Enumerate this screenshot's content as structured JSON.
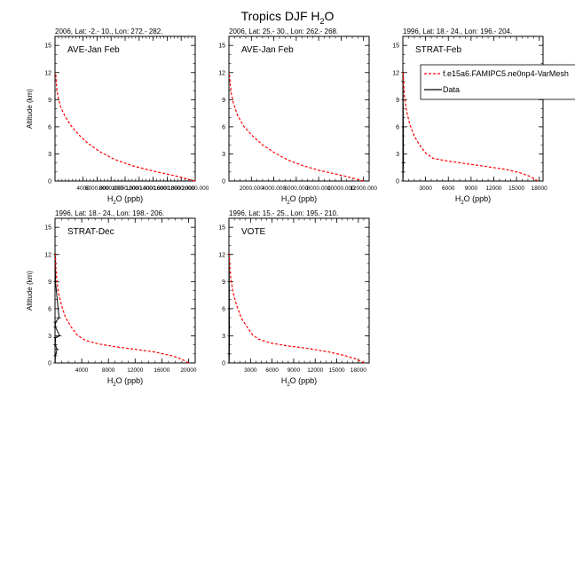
{
  "figure": {
    "title_main": "Tropics DJF H",
    "title_sub": "2",
    "title_tail": "O"
  },
  "legend": {
    "model_label": "f.e15a6.FAMIPC5.ne0np4-VarMesh",
    "data_label": "Data"
  },
  "colors": {
    "model": "#ff0000",
    "data": "#000000",
    "axis": "#000000"
  },
  "chart_data": [
    {
      "type": "line",
      "header": "2006, Lat: -2.- 10., Lon: 272.- 282.",
      "campaign": "AVE-Jan Feb",
      "xlabel": "H2O (ppb)",
      "ylabel": "Altitude (km)",
      "xlim": [
        0,
        20000
      ],
      "ylim": [
        0,
        16
      ],
      "xticks": [
        4000,
        6000,
        8000,
        10000,
        12000,
        14000,
        16000,
        18000,
        20000
      ],
      "xtick_labels": [
        "4000",
        "6000.000",
        "8000.000",
        "10000.000",
        "12000.000",
        "14000.000",
        "16000.000",
        "18000.000",
        "20000.000"
      ],
      "yticks": [
        0,
        3,
        6,
        9,
        12,
        15
      ],
      "series": [
        {
          "name": "f.e15a6.FAMIPC5.ne0np4-VarMesh",
          "x": [
            20000,
            17000,
            14000,
            11000,
            8500,
            6500,
            4800,
            3400,
            2200,
            1400,
            800,
            450,
            250,
            150,
            100
          ],
          "y": [
            0,
            0.6,
            1.1,
            1.7,
            2.4,
            3.2,
            4.1,
            5.1,
            6.2,
            7.2,
            8.2,
            9.2,
            10.2,
            11.2,
            12
          ]
        }
      ],
      "data_series": {
        "x": [],
        "y": []
      }
    },
    {
      "type": "line",
      "header": "2006, Lat: 25.- 30., Lon: 262.- 268.",
      "campaign": "AVE-Jan Feb",
      "xlabel": "H2O (ppb)",
      "ylabel": "",
      "xlim": [
        0,
        12500
      ],
      "ylim": [
        0,
        16
      ],
      "xticks": [
        2000,
        4000,
        6000,
        8000,
        10000,
        12000
      ],
      "xtick_labels": [
        "2000.000",
        "4000.000",
        "6000.000",
        "8000.000",
        "10000.000",
        "12000.000"
      ],
      "yticks": [
        0,
        3,
        6,
        9,
        12,
        15
      ],
      "series": [
        {
          "name": "f.e15a6.FAMIPC5.ne0np4-VarMesh",
          "x": [
            12000,
            10800,
            9400,
            8000,
            6600,
            5300,
            4100,
            3000,
            2100,
            1300,
            750,
            400,
            200,
            100,
            40
          ],
          "y": [
            0,
            0.4,
            0.8,
            1.2,
            1.7,
            2.3,
            3.1,
            4.0,
            5.0,
            6.1,
            7.3,
            8.6,
            9.8,
            10.8,
            12
          ]
        }
      ],
      "data_series": {
        "x": [],
        "y": []
      }
    },
    {
      "type": "line",
      "header": "1996, Lat: 18.- 24., Lon: 196.- 204.",
      "campaign": "STRAT-Feb",
      "xlabel": "H2O (ppb)",
      "ylabel": "",
      "xlim": [
        0,
        18500
      ],
      "ylim": [
        0,
        16
      ],
      "xticks": [
        3000,
        6000,
        9000,
        12000,
        15000,
        18000
      ],
      "xtick_labels": [
        "3000",
        "6000",
        "9000",
        "12000",
        "15000",
        "18000"
      ],
      "yticks": [
        0,
        3,
        6,
        9,
        12,
        15
      ],
      "series": [
        {
          "name": "f.e15a6.FAMIPC5.ne0np4-VarMesh",
          "x": [
            17800,
            16800,
            15500,
            13500,
            11000,
            8500,
            6000,
            4000,
            3000,
            2200,
            1500,
            900,
            500,
            250,
            120,
            60
          ],
          "y": [
            0,
            0.5,
            0.9,
            1.3,
            1.6,
            1.9,
            2.2,
            2.5,
            3.1,
            4.0,
            5.0,
            6.3,
            7.7,
            9.1,
            10.5,
            12
          ]
        }
      ],
      "data_series": {
        "x": [
          25,
          30,
          40,
          60,
          80,
          40,
          20
        ],
        "y": [
          12,
          11,
          9,
          6,
          2,
          1,
          0
        ]
      }
    },
    {
      "type": "line",
      "header": "1996, Lat: 18.- 24., Lon: 198.- 206.",
      "campaign": "STRAT-Dec",
      "xlabel": "H2O (ppb)",
      "ylabel": "Altitude (km)",
      "xlim": [
        0,
        21000
      ],
      "ylim": [
        0,
        16
      ],
      "xticks": [
        4000,
        8000,
        12000,
        16000,
        20000
      ],
      "xtick_labels": [
        "4000",
        "8000",
        "12000",
        "16000",
        "20000"
      ],
      "yticks": [
        0,
        3,
        6,
        9,
        12,
        15
      ],
      "series": [
        {
          "name": "f.e15a6.FAMIPC5.ne0np4-VarMesh",
          "x": [
            20000,
            19000,
            17500,
            15000,
            12000,
            9000,
            6500,
            4500,
            3300,
            2400,
            1600,
            1000,
            550,
            280,
            130,
            60
          ],
          "y": [
            0,
            0.4,
            0.8,
            1.2,
            1.5,
            1.8,
            2.1,
            2.5,
            3.1,
            4.0,
            5.0,
            6.3,
            7.7,
            9.1,
            10.5,
            12
          ]
        }
      ],
      "data_series": {
        "x": [
          40,
          60,
          600,
          60,
          40,
          700,
          80,
          40,
          300,
          50,
          20
        ],
        "y": [
          12,
          9,
          5,
          4.5,
          4,
          3,
          2.8,
          2,
          1.5,
          0.8,
          0
        ]
      }
    },
    {
      "type": "line",
      "header": "1996, Lat: 15.- 25., Lon: 195.- 210.",
      "campaign": "VOTE",
      "xlabel": "H2O (ppb)",
      "ylabel": "",
      "xlim": [
        0,
        19500
      ],
      "ylim": [
        0,
        16
      ],
      "xticks": [
        3000,
        6000,
        9000,
        12000,
        15000,
        18000
      ],
      "xtick_labels": [
        "3000",
        "6000",
        "9000",
        "12000",
        "15000",
        "18000"
      ],
      "yticks": [
        0,
        3,
        6,
        9,
        12,
        15
      ],
      "series": [
        {
          "name": "f.e15a6.FAMIPC5.ne0np4-VarMesh",
          "x": [
            18800,
            17800,
            16200,
            14000,
            11000,
            8000,
            5800,
            4200,
            3300,
            2500,
            1700,
            1100,
            600,
            300,
            140,
            60
          ],
          "y": [
            0,
            0.4,
            0.8,
            1.2,
            1.6,
            1.9,
            2.2,
            2.6,
            3.1,
            4.0,
            5.0,
            6.3,
            7.7,
            9.1,
            10.5,
            12
          ]
        }
      ],
      "data_series": {
        "x": [
          30,
          40,
          50,
          60,
          50,
          30
        ],
        "y": [
          12,
          9,
          6,
          3,
          1,
          0
        ]
      }
    }
  ]
}
